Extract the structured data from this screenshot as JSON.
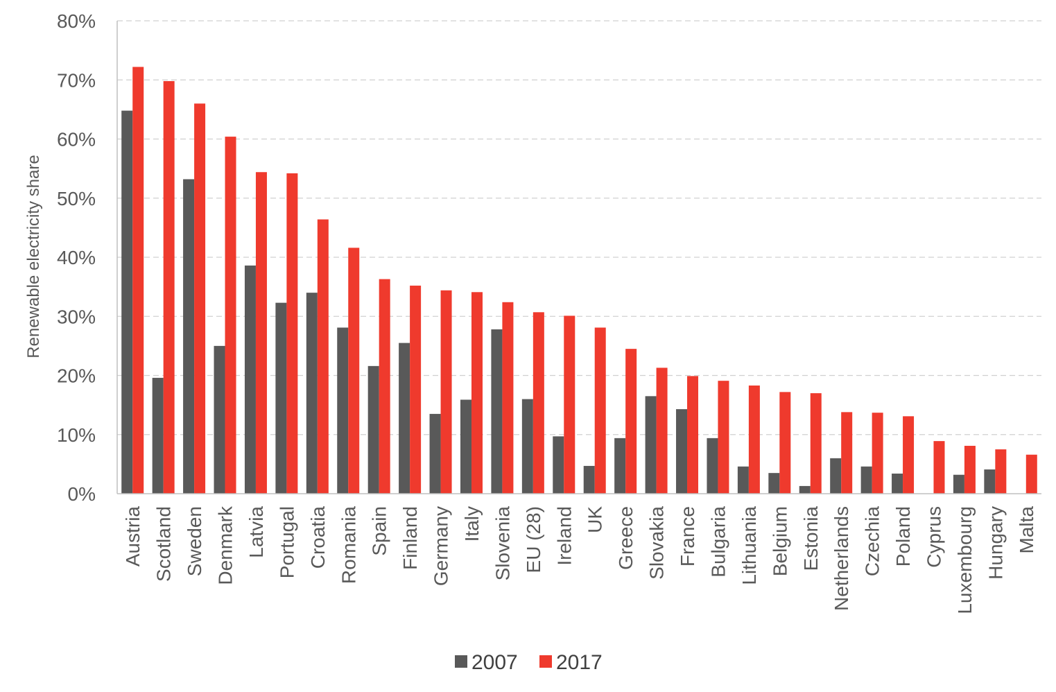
{
  "chart_data": {
    "type": "bar",
    "ylabel": "Renewable electricity share",
    "ylim": [
      0,
      80
    ],
    "y_ticks": [
      "0%",
      "10%",
      "20%",
      "30%",
      "40%",
      "50%",
      "60%",
      "70%",
      "80%"
    ],
    "grid": true,
    "legend_position": "bottom",
    "categories": [
      "Austria",
      "Scotland",
      "Sweden",
      "Denmark",
      "Latvia",
      "Portugal",
      "Croatia",
      "Romania",
      "Spain",
      "Finland",
      "Germany",
      "Italy",
      "Slovenia",
      "EU (28)",
      "Ireland",
      "UK",
      "Greece",
      "Slovakia",
      "France",
      "Bulgaria",
      "Lithuania",
      "Belgium",
      "Estonia",
      "Netherlands",
      "Czechia",
      "Poland",
      "Cyprus",
      "Luxembourg",
      "Hungary",
      "Malta"
    ],
    "series": [
      {
        "name": "2007",
        "color": "#595959",
        "values": [
          64.8,
          19.6,
          53.2,
          25.0,
          38.6,
          32.3,
          34.0,
          28.1,
          21.6,
          25.5,
          13.5,
          15.9,
          27.8,
          16.0,
          9.7,
          4.7,
          9.4,
          16.5,
          14.3,
          9.4,
          4.6,
          3.5,
          1.3,
          6.0,
          4.6,
          3.4,
          0.0,
          3.2,
          4.1,
          0.0
        ]
      },
      {
        "name": "2017",
        "color": "#ef3a2d",
        "values": [
          72.2,
          69.8,
          66.0,
          60.4,
          54.4,
          54.2,
          46.4,
          41.6,
          36.3,
          35.2,
          34.4,
          34.1,
          32.4,
          30.7,
          30.1,
          28.1,
          24.5,
          21.3,
          19.9,
          19.1,
          18.3,
          17.2,
          17.0,
          13.8,
          13.7,
          13.1,
          8.9,
          8.1,
          7.5,
          6.6
        ]
      }
    ]
  }
}
